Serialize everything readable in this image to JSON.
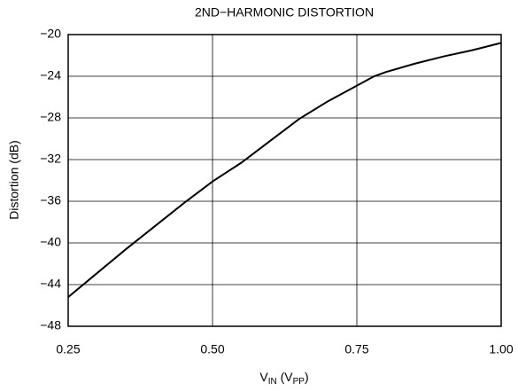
{
  "chart_data": {
    "type": "line",
    "title": "2ND−HARMONIC DISTORTION",
    "ylabel": "Distortion (dB)",
    "xlabel": [
      "V",
      "IN",
      " (V",
      "PP",
      ")"
    ],
    "x": [
      0.25,
      0.3,
      0.35,
      0.4,
      0.45,
      0.5,
      0.55,
      0.6,
      0.65,
      0.7,
      0.75,
      0.78,
      0.8,
      0.85,
      0.9,
      0.95,
      1.0
    ],
    "series": [
      {
        "color": "#000000",
        "values": [
          -45.2,
          -42.9,
          -40.6,
          -38.4,
          -36.2,
          -34.1,
          -32.3,
          -30.2,
          -28.1,
          -26.4,
          -24.9,
          -24.0,
          -23.6,
          -22.8,
          -22.1,
          -21.5,
          -20.8
        ]
      }
    ],
    "xlim": [
      0.25,
      1.0
    ],
    "xticks": [
      0.25,
      {
        "value": 0.5,
        "label": "0.50"
      },
      0.75,
      {
        "value": 1.0,
        "label": "1.00"
      }
    ],
    "ylim": [
      -48,
      -20
    ],
    "yticks": [
      {
        "value": -20,
        "label": "−20"
      },
      {
        "value": -24,
        "label": "−24"
      },
      {
        "value": -28,
        "label": "−28"
      },
      {
        "value": -32,
        "label": "−32"
      },
      {
        "value": -36,
        "label": "−36"
      },
      {
        "value": -40,
        "label": "−40"
      },
      {
        "value": -44,
        "label": "−44"
      },
      {
        "value": -48,
        "label": "−48"
      }
    ],
    "grid": true
  }
}
